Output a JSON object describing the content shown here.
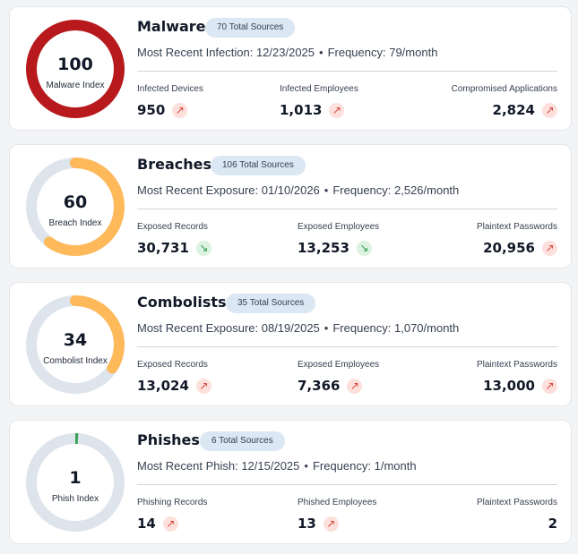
{
  "cards": [
    {
      "title": "Malware",
      "badge": "70 Total Sources",
      "recent": "Most Recent Infection: 12/23/2025",
      "separator": "•",
      "frequency": "Frequency: 79/month",
      "gauge": {
        "value": "100",
        "label": "Malware Index",
        "level": 100,
        "color": "#b7191c",
        "track": "#dde4ec"
      },
      "stats": [
        {
          "label": "Infected Devices",
          "value": "950",
          "trend": "up"
        },
        {
          "label": "Infected Employees",
          "value": "1,013",
          "trend": "up"
        },
        {
          "label": "Compromised Applications",
          "value": "2,824",
          "trend": "up"
        }
      ]
    },
    {
      "title": "Breaches",
      "badge": "106 Total Sources",
      "recent": "Most Recent Exposure: 01/10/2026",
      "separator": "•",
      "frequency": "Frequency: 2,526/month",
      "gauge": {
        "value": "60",
        "label": "Breach Index",
        "level": 60,
        "color": "#fdb95a",
        "track": "#dde4ec"
      },
      "stats": [
        {
          "label": "Exposed Records",
          "value": "30,731",
          "trend": "down"
        },
        {
          "label": "Exposed Employees",
          "value": "13,253",
          "trend": "down"
        },
        {
          "label": "Plaintext Passwords",
          "value": "20,956",
          "trend": "up"
        }
      ]
    },
    {
      "title": "Combolists",
      "badge": "35 Total Sources",
      "recent": "Most Recent Exposure: 08/19/2025",
      "separator": "•",
      "frequency": "Frequency: 1,070/month",
      "gauge": {
        "value": "34",
        "label": "Combolist Index",
        "level": 34,
        "color": "#fdb95a",
        "track": "#dde4ec"
      },
      "stats": [
        {
          "label": "Exposed Records",
          "value": "13,024",
          "trend": "up"
        },
        {
          "label": "Exposed Employees",
          "value": "7,366",
          "trend": "up"
        },
        {
          "label": "Plaintext Passwords",
          "value": "13,000",
          "trend": "up"
        }
      ]
    },
    {
      "title": "Phishes",
      "badge": "6 Total Sources",
      "recent": "Most Recent Phish: 12/15/2025",
      "separator": "•",
      "frequency": "Frequency: 1/month",
      "gauge": {
        "value": "1",
        "label": "Phish Index",
        "level": 1,
        "color": "#3aa35a",
        "track": "#dde4ec"
      },
      "stats": [
        {
          "label": "Phishing Records",
          "value": "14",
          "trend": "up"
        },
        {
          "label": "Phished Employees",
          "value": "13",
          "trend": "up"
        },
        {
          "label": "Plaintext Passwords",
          "value": "2",
          "trend": "none"
        }
      ]
    }
  ],
  "trend_icons": {
    "up": "arrow-up-right-icon",
    "down": "arrow-down-right-icon"
  }
}
